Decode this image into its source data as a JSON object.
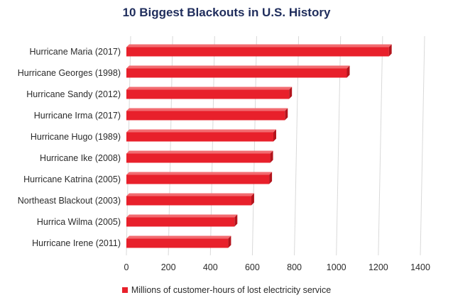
{
  "chart_data": {
    "type": "bar",
    "orientation": "horizontal",
    "title": "10 Biggest Blackouts in U.S. History",
    "categories": [
      "Hurricane Maria (2017)",
      "Hurricane Georges (1998)",
      "Hurricane Sandy (2012)",
      "Hurricane Irma (2017)",
      "Hurricane Hugo (1989)",
      "Hurricane Ike (2008)",
      "Hurricane Katrina (2005)",
      "Northeast Blackout (2003)",
      "Hurrica Wilma (2005)",
      "Hurricane Irene (2011)"
    ],
    "series": [
      {
        "name": "Millions of customer-hours of lost electricity service",
        "values": [
          1250,
          1050,
          775,
          755,
          700,
          685,
          680,
          595,
          515,
          485
        ]
      }
    ],
    "xlim": [
      0,
      1400
    ],
    "xticks": [
      "0",
      "200",
      "400",
      "600",
      "800",
      "1000",
      "1200",
      "1400"
    ],
    "grid": true,
    "legend_position": "bottom",
    "bar_color": "#e8202b"
  }
}
